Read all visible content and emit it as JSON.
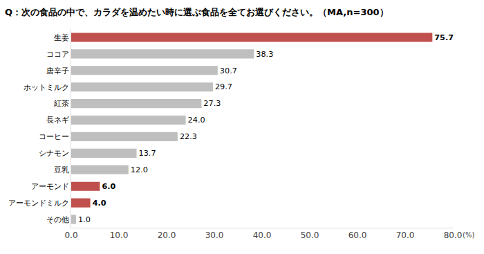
{
  "chart_data": {
    "type": "bar",
    "title": "Q：次の食品の中で、カラダを温めたい時に選ぶ食品を全てお選びください。（MA,n=300）",
    "xlabel": "(%)",
    "orientation": "horizontal",
    "categories": [
      "生姜",
      "ココア",
      "唐辛子",
      "ホットミルク",
      "紅茶",
      "長ネギ",
      "コーヒー",
      "シナモン",
      "豆乳",
      "アーモンド",
      "アーモンドミルク",
      "その他"
    ],
    "values": [
      75.7,
      38.3,
      30.7,
      29.7,
      27.3,
      24.0,
      22.3,
      13.7,
      12.0,
      6.0,
      4.0,
      1.0
    ],
    "value_labels": [
      "75.7",
      "38.3",
      "30.7",
      "29.7",
      "27.3",
      "24.0",
      "22.3",
      "13.7",
      "12.0",
      "6.0",
      "4.0",
      "1.0"
    ],
    "colors": [
      "#c0504d",
      "#bfbfbf",
      "#bfbfbf",
      "#bfbfbf",
      "#bfbfbf",
      "#bfbfbf",
      "#bfbfbf",
      "#bfbfbf",
      "#bfbfbf",
      "#c0504d",
      "#c0504d",
      "#bfbfbf"
    ],
    "data_labels": true,
    "grid": false,
    "xlim": [
      0,
      80
    ],
    "xticks": [
      {
        "value": 0,
        "label": "0.0"
      },
      {
        "value": 10,
        "label": "10.0"
      },
      {
        "value": 20,
        "label": "20.0"
      },
      {
        "value": 30,
        "label": "30.0"
      },
      {
        "value": 40,
        "label": "40.0"
      },
      {
        "value": 50,
        "label": "50.0"
      },
      {
        "value": 60,
        "label": "60.0"
      },
      {
        "value": 70,
        "label": "70.0"
      },
      {
        "value": 80,
        "label": "80.0"
      }
    ]
  }
}
